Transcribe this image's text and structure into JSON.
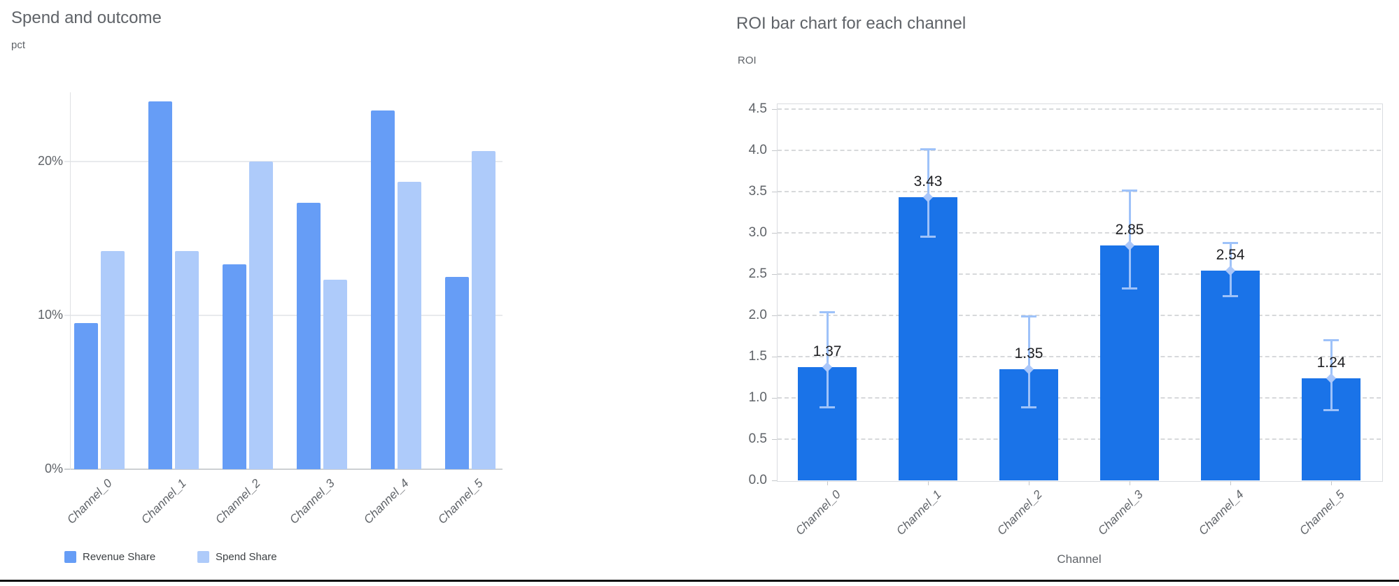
{
  "window": {
    "background": "#ffffff",
    "bottom_bar_color": "#111111"
  },
  "chart_data": [
    {
      "id": "spend-and-outcome",
      "type": "bar",
      "title": "Spend and outcome",
      "xlabel": "",
      "ylabel": "pct",
      "categories": [
        "Channel_0",
        "Channel_1",
        "Channel_2",
        "Channel_3",
        "Channel_4",
        "Channel_5"
      ],
      "series": [
        {
          "name": "Revenue Share",
          "color": "#669df6",
          "values": [
            9.5,
            23.9,
            13.3,
            17.3,
            23.3,
            12.5
          ]
        },
        {
          "name": "Spend Share",
          "color": "#aecbfa",
          "values": [
            14.2,
            14.2,
            20.0,
            12.3,
            18.7,
            20.7
          ]
        }
      ],
      "y_ticks": [
        {
          "label": "0%",
          "value": 0
        },
        {
          "label": "10%",
          "value": 10
        },
        {
          "label": "20%",
          "value": 20
        }
      ],
      "ylim": [
        0,
        24.5
      ],
      "grid": "solid",
      "legend_position": "bottom",
      "axis_color": "#dfe1e3",
      "gridline_color": "#e8eaed",
      "baseline_color": "#cdd0d3"
    },
    {
      "id": "roi-by-channel",
      "type": "bar",
      "title": "ROI bar chart for each channel",
      "xlabel": "Channel",
      "ylabel": "ROI",
      "categories": [
        "Channel_0",
        "Channel_1",
        "Channel_2",
        "Channel_3",
        "Channel_4",
        "Channel_5"
      ],
      "values": [
        1.37,
        3.43,
        1.35,
        2.85,
        2.54,
        1.24
      ],
      "value_labels": [
        "1.37",
        "3.43",
        "1.35",
        "2.85",
        "2.54",
        "1.24"
      ],
      "error_low": [
        0.88,
        2.95,
        0.88,
        2.32,
        2.23,
        0.85
      ],
      "error_high": [
        2.04,
        4.02,
        1.99,
        3.52,
        2.88,
        1.7
      ],
      "y_ticks": [
        {
          "label": "0.0",
          "value": 0.0
        },
        {
          "label": "0.5",
          "value": 0.5
        },
        {
          "label": "1.0",
          "value": 1.0
        },
        {
          "label": "1.5",
          "value": 1.5
        },
        {
          "label": "2.0",
          "value": 2.0
        },
        {
          "label": "2.5",
          "value": 2.5
        },
        {
          "label": "3.0",
          "value": 3.0
        },
        {
          "label": "3.5",
          "value": 3.5
        },
        {
          "label": "4.0",
          "value": 4.0
        },
        {
          "label": "4.5",
          "value": 4.5
        }
      ],
      "ylim": [
        0,
        4.5
      ],
      "grid": "dashed",
      "bar_color": "#1a73e8",
      "error_color": "#9ec2f9",
      "marker_color": "#aac7fa",
      "box_border_color": "#dadce0",
      "gridline_color": "#d7d9db",
      "tick_color": "#c4c7ca"
    }
  ]
}
